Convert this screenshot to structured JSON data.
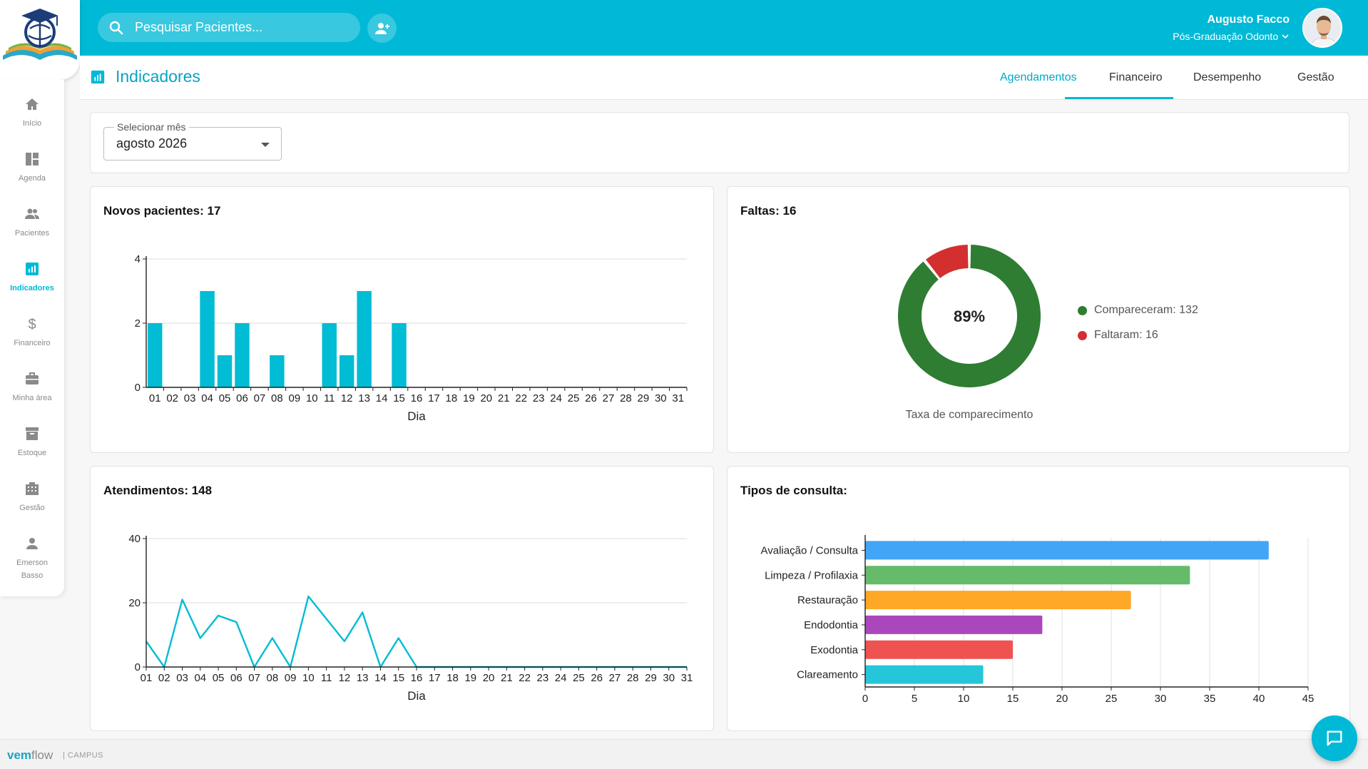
{
  "search": {
    "placeholder": "Pesquisar Pacientes..."
  },
  "user": {
    "name": "Augusto Facco",
    "subtitle": "Pós-Graduação Odonto"
  },
  "sidebar": {
    "items": [
      {
        "label": "Início",
        "icon": "home-icon"
      },
      {
        "label": "Agenda",
        "icon": "dashboard-icon"
      },
      {
        "label": "Pacientes",
        "icon": "people-icon"
      },
      {
        "label": "Indicadores",
        "icon": "chart-icon",
        "active": true
      },
      {
        "label": "Financeiro",
        "icon": "dollar-icon"
      },
      {
        "label": "Minha área",
        "icon": "briefcase-icon"
      },
      {
        "label": "Estoque",
        "icon": "archive-icon"
      },
      {
        "label": "Gestão",
        "icon": "building-icon"
      },
      {
        "label": "Emerson Basso",
        "icon": "person-icon"
      }
    ]
  },
  "page": {
    "title": "Indicadores"
  },
  "tabs": [
    {
      "label": "Agendamentos",
      "active": true
    },
    {
      "label": "Financeiro"
    },
    {
      "label": "Desempenho"
    },
    {
      "label": "Gestão"
    }
  ],
  "month_select": {
    "label": "Selecionar mês",
    "value": "agosto 2026"
  },
  "cards": {
    "novos": "Novos pacientes: 17",
    "faltas": "Faltas: 16",
    "atendimentos": "Atendimentos: 148",
    "tipos": "Tipos de consulta:"
  },
  "footer": {
    "brand_a": "vem",
    "brand_b": "flow",
    "campus": "| CAMPUS"
  },
  "colors": {
    "accent": "#00b9d6",
    "green": "#2e7d32",
    "red": "#d32f2f"
  },
  "chart_data": [
    {
      "type": "bar",
      "title": "Novos pacientes: 17",
      "xlabel": "Dia",
      "ylabel": "",
      "ylim": [
        0,
        4
      ],
      "yticks": [
        0,
        2,
        4
      ],
      "categories": [
        "01",
        "02",
        "03",
        "04",
        "05",
        "06",
        "07",
        "08",
        "09",
        "10",
        "11",
        "12",
        "13",
        "14",
        "15",
        "16",
        "17",
        "18",
        "19",
        "20",
        "21",
        "22",
        "23",
        "24",
        "25",
        "26",
        "27",
        "28",
        "29",
        "30",
        "31"
      ],
      "values": [
        2,
        0,
        0,
        3,
        1,
        2,
        0,
        1,
        0,
        0,
        2,
        1,
        3,
        0,
        2,
        0,
        0,
        0,
        0,
        0,
        0,
        0,
        0,
        0,
        0,
        0,
        0,
        0,
        0,
        0,
        0
      ],
      "color": "#00bcd4",
      "grid": true
    },
    {
      "type": "pie",
      "title": "Faltas: 16",
      "center_label": "89%",
      "caption": "Taxa de comparecimento",
      "slices": [
        {
          "label": "Compareceram: 132",
          "value": 132,
          "color": "#2e7d32"
        },
        {
          "label": "Faltaram: 16",
          "value": 16,
          "color": "#d32f2f"
        }
      ],
      "legend": "right"
    },
    {
      "type": "line",
      "title": "Atendimentos: 148",
      "xlabel": "Dia",
      "ylabel": "",
      "ylim": [
        0,
        40
      ],
      "yticks": [
        0,
        20,
        40
      ],
      "categories": [
        "01",
        "02",
        "03",
        "04",
        "05",
        "06",
        "07",
        "08",
        "09",
        "10",
        "11",
        "12",
        "13",
        "14",
        "15",
        "16",
        "17",
        "18",
        "19",
        "20",
        "21",
        "22",
        "23",
        "24",
        "25",
        "26",
        "27",
        "28",
        "29",
        "30",
        "31"
      ],
      "values": [
        8,
        0,
        21,
        9,
        16,
        14,
        0,
        9,
        0,
        22,
        15,
        8,
        17,
        0,
        9,
        0,
        0,
        0,
        0,
        0,
        0,
        0,
        0,
        0,
        0,
        0,
        0,
        0,
        0,
        0,
        0
      ],
      "color": "#00bcd4",
      "grid": true
    },
    {
      "type": "bar",
      "orientation": "horizontal",
      "title": "Tipos de consulta:",
      "categories": [
        "Avaliação / Consulta",
        "Limpeza / Profilaxia",
        "Restauração",
        "Endodontia",
        "Exodontia",
        "Clareamento"
      ],
      "values": [
        41,
        33,
        27,
        18,
        15,
        12
      ],
      "colors": [
        "#42a5f5",
        "#66bb6a",
        "#ffa726",
        "#ab47bc",
        "#ef5350",
        "#26c6da"
      ],
      "xlim": [
        0,
        45
      ],
      "xticks": [
        0,
        5,
        10,
        15,
        20,
        25,
        30,
        35,
        40,
        45
      ],
      "grid": true
    }
  ]
}
